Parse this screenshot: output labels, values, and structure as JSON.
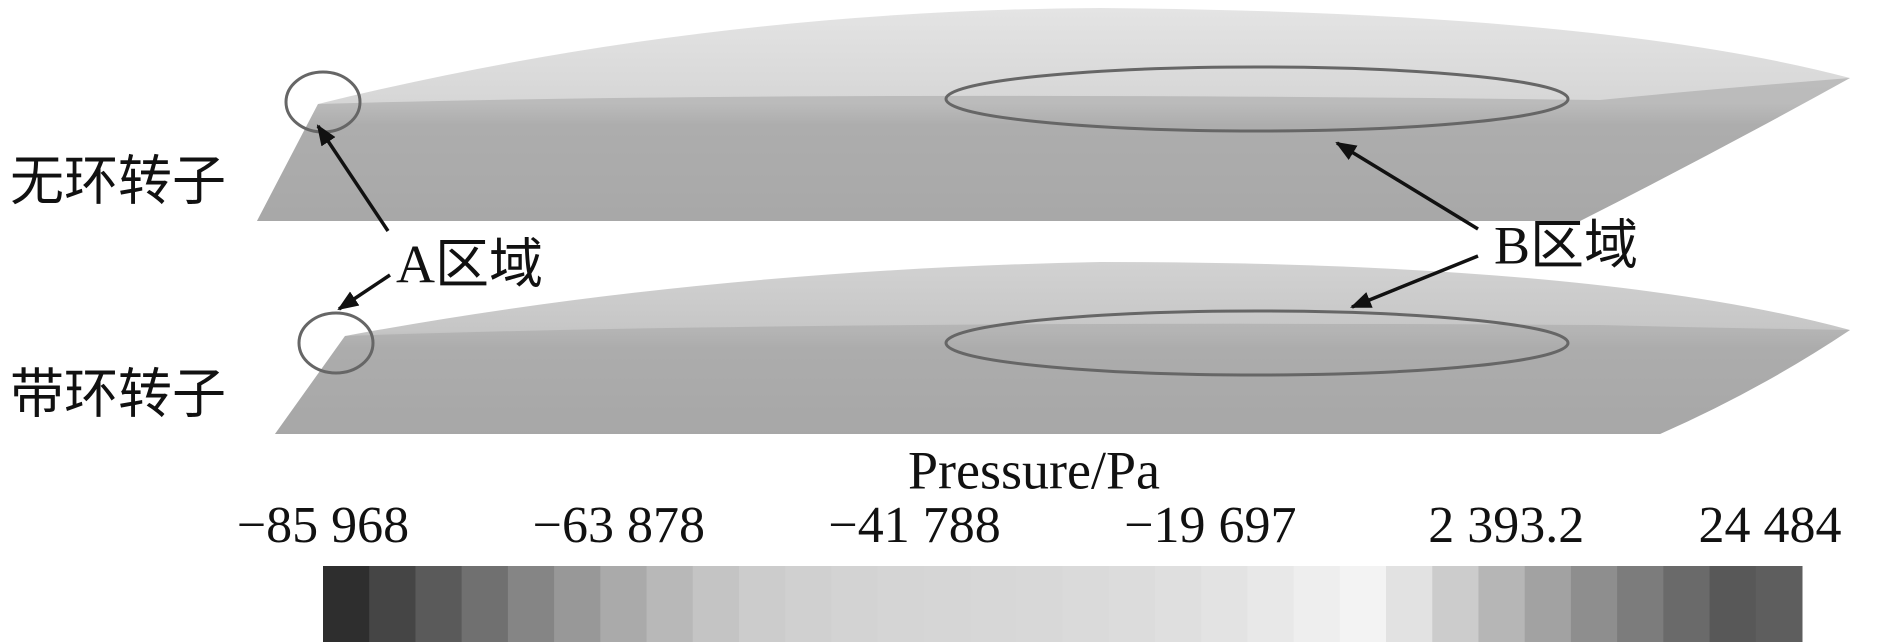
{
  "blades": [
    {
      "label": "无环转子"
    },
    {
      "label": "带环转子"
    }
  ],
  "regions": {
    "a": "A区域",
    "b": "B区域"
  },
  "colorbar": {
    "title": "Pressure/Pa",
    "ticks": [
      "−85 968",
      "−63 878",
      "−41 788",
      "−19 697",
      "2 393.2",
      "24 484"
    ]
  }
}
